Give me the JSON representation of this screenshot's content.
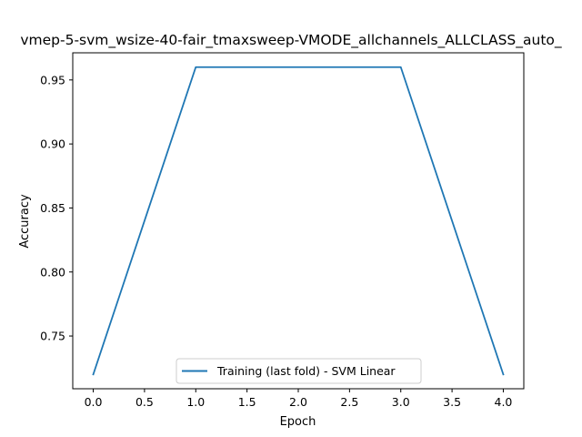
{
  "chart_data": {
    "type": "line",
    "title": "vmep-5-svm_wsize-40-fair_tmaxsweep-VMODE_allchannels_ALLCLASS_auto_",
    "xlabel": "Epoch",
    "ylabel": "Accuracy",
    "xlim": [
      -0.2,
      4.2
    ],
    "ylim": [
      0.7088,
      0.9712
    ],
    "x_ticks": [
      0.0,
      0.5,
      1.0,
      1.5,
      2.0,
      2.5,
      3.0,
      3.5,
      4.0
    ],
    "x_tick_labels": [
      "0.0",
      "0.5",
      "1.0",
      "1.5",
      "2.0",
      "2.5",
      "3.0",
      "3.5",
      "4.0"
    ],
    "y_ticks": [
      0.75,
      0.8,
      0.85,
      0.9,
      0.95
    ],
    "y_tick_labels": [
      "0.75",
      "0.80",
      "0.85",
      "0.90",
      "0.95"
    ],
    "grid": false,
    "legend_position": "bottom-center",
    "series": [
      {
        "name": "Training (last fold) - SVM Linear",
        "color": "#1f77b4",
        "x": [
          0,
          1,
          2,
          3,
          4
        ],
        "y": [
          0.72,
          0.96,
          0.96,
          0.96,
          0.72
        ]
      }
    ]
  }
}
